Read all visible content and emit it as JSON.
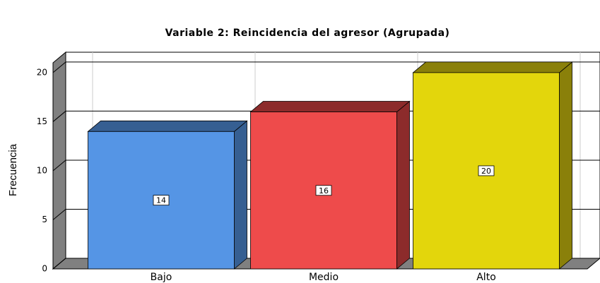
{
  "chart_data": {
    "type": "bar3d",
    "title": "Variable 2: Reincidencia del agresor (Agrupada)",
    "y_label": "Frecuencia",
    "categories": [
      "Bajo",
      "Medio",
      "Alto"
    ],
    "values": [
      14,
      16,
      20
    ],
    "colors": [
      "#5595e5",
      "#ee4b4b",
      "#e3d60c"
    ],
    "side_colors": [
      "#365f92",
      "#8c2b2b",
      "#8a800a"
    ],
    "ylim": [
      0,
      21
    ],
    "yticks": [
      0,
      5,
      10,
      15,
      20
    ],
    "grid": true
  }
}
